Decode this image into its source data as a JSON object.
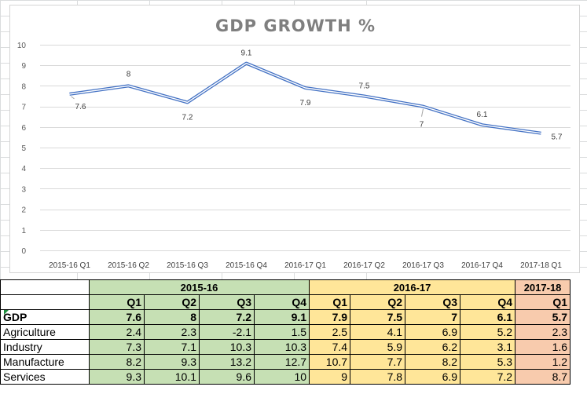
{
  "sheet": {
    "grid_color": "#dadcdd"
  },
  "chart_data": {
    "type": "line",
    "title": "GDP GROWTH %",
    "xlabel": "",
    "ylabel": "",
    "categories": [
      "2015-16 Q1",
      "2015-16 Q2",
      "2015-16 Q3",
      "2015-16 Q4",
      "2016-17 Q1",
      "2016-17 Q2",
      "2016-17 Q3",
      "2016-17 Q4",
      "2017-18 Q1"
    ],
    "series": [
      {
        "values": [
          7.6,
          8,
          7.2,
          9.1,
          7.9,
          7.5,
          7,
          6.1,
          5.7
        ],
        "color": "#4472c4"
      }
    ],
    "data_labels": [
      "7.6",
      "8",
      "7.2",
      "9.1",
      "7.9",
      "7.5",
      "7",
      "6.1",
      "5.7"
    ],
    "ylim": [
      0,
      10
    ],
    "yticks": [
      "0",
      "1",
      "2",
      "3",
      "4",
      "5",
      "6",
      "7",
      "8",
      "9",
      "10"
    ],
    "grid": "horizontal",
    "legend": "none"
  },
  "table": {
    "years": [
      {
        "label": "2015-16",
        "quarters": 4,
        "color": "#c6e0b4"
      },
      {
        "label": "2016-17",
        "quarters": 4,
        "color": "#ffe699"
      },
      {
        "label": "2017-18",
        "quarters": 1,
        "color": "#f8cbad"
      }
    ],
    "quarter_labels": [
      "Q1",
      "Q2",
      "Q3",
      "Q4",
      "Q1",
      "Q2",
      "Q3",
      "Q4",
      "Q1"
    ],
    "rows": [
      {
        "label": "GDP",
        "bold": true,
        "values": [
          "7.6",
          "8",
          "7.2",
          "9.1",
          "7.9",
          "7.5",
          "7",
          "6.1",
          "5.7"
        ]
      },
      {
        "label": "Agriculture",
        "values": [
          "2.4",
          "2.3",
          "-2.1",
          "1.5",
          "2.5",
          "4.1",
          "6.9",
          "5.2",
          "2.3"
        ]
      },
      {
        "label": "Industry",
        "values": [
          "7.3",
          "7.1",
          "10.3",
          "10.3",
          "7.4",
          "5.9",
          "6.2",
          "3.1",
          "1.6"
        ]
      },
      {
        "label": "Manufacture",
        "values": [
          "8.2",
          "9.3",
          "13.2",
          "12.7",
          "10.7",
          "7.7",
          "8.2",
          "5.3",
          "1.2"
        ]
      },
      {
        "label": "Services",
        "values": [
          "9.3",
          "10.1",
          "9.6",
          "10",
          "9",
          "7.8",
          "6.9",
          "7.2",
          "8.7"
        ]
      }
    ]
  }
}
